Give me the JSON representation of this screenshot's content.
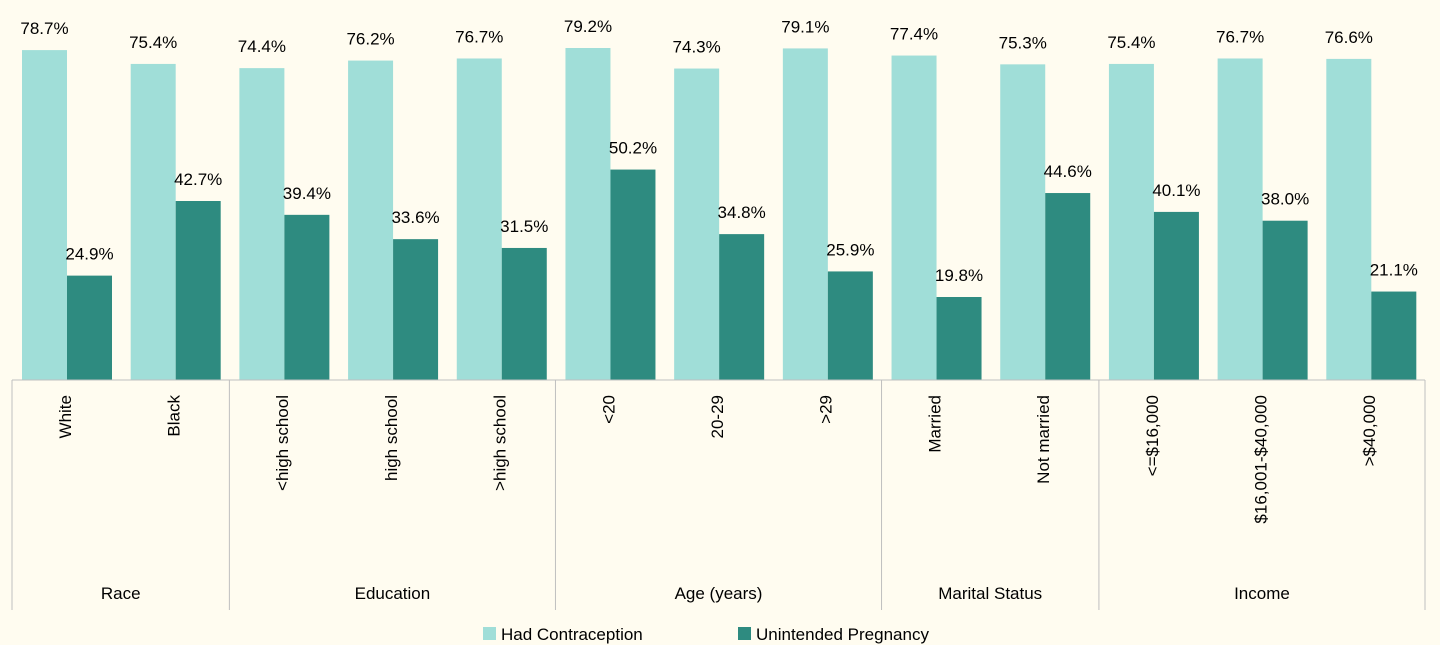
{
  "chart_data": {
    "type": "grouped-bar",
    "groups": [
      {
        "name": "Race",
        "categories": [
          "White",
          "Black"
        ]
      },
      {
        "name": "Education",
        "categories": [
          "<high school",
          "high school",
          ">high school"
        ]
      },
      {
        "name": "Age (years)",
        "categories": [
          "<20",
          "20-29",
          ">29"
        ]
      },
      {
        "name": "Marital Status",
        "categories": [
          "Married",
          "Not married"
        ]
      },
      {
        "name": "Income",
        "categories": [
          "<=$16,000",
          "$16,001-$40,000",
          ">$40,000"
        ]
      }
    ],
    "series": [
      {
        "name": "Had Contraception",
        "color": "#a0ded8",
        "values": [
          78.7,
          75.4,
          74.4,
          76.2,
          76.7,
          79.2,
          74.3,
          79.1,
          77.4,
          75.3,
          75.4,
          76.7,
          76.6
        ],
        "value_labels": [
          "78.7%",
          "75.4%",
          "74.4%",
          "76.2%",
          "76.7%",
          "79.2%",
          "74.3%",
          "79.1%",
          "77.4%",
          "75.3%",
          "75.4%",
          "76.7%",
          "76.6%"
        ]
      },
      {
        "name": "Unintended Pregnancy",
        "color": "#2e8b80",
        "values": [
          24.9,
          42.7,
          39.4,
          33.6,
          31.5,
          50.2,
          34.8,
          25.9,
          19.8,
          44.6,
          40.1,
          38.0,
          21.1
        ],
        "value_labels": [
          "24.9%",
          "42.7%",
          "39.4%",
          "33.6%",
          "31.5%",
          "50.2%",
          "34.8%",
          "25.9%",
          "19.8%",
          "44.6%",
          "40.1%",
          "38.0%",
          "21.1%"
        ]
      }
    ],
    "legend": "bottom"
  }
}
